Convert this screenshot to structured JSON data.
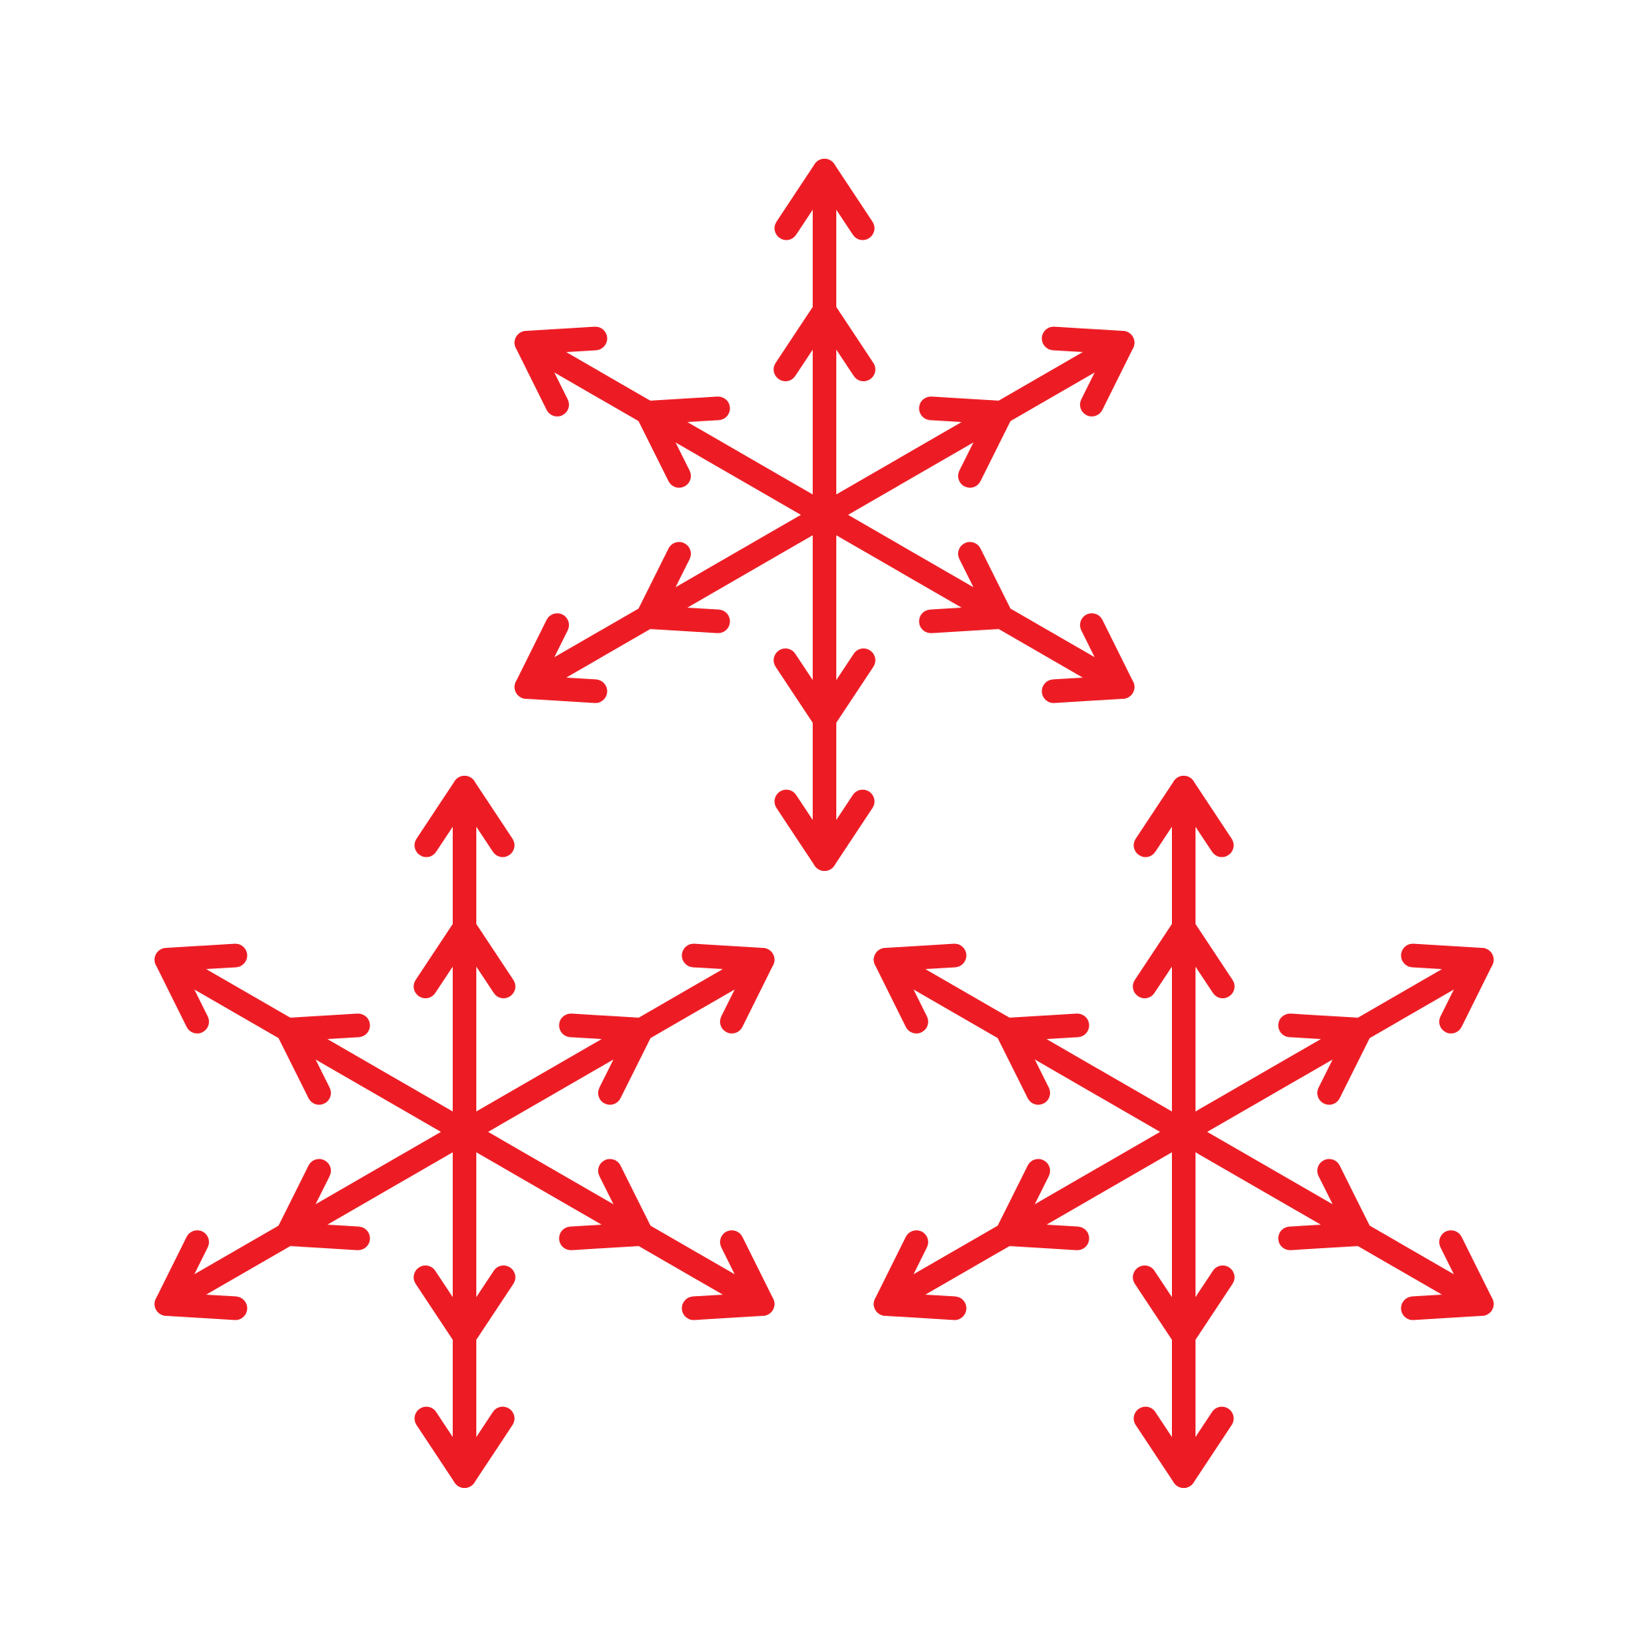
{
  "image": {
    "background": "#ffffff",
    "icon_color": "#ed1c24",
    "icon_name": "snowflakes-icon"
  },
  "snowflakes": [
    {
      "name": "snowflake-top"
    },
    {
      "name": "snowflake-bottom-left"
    },
    {
      "name": "snowflake-bottom-right"
    }
  ]
}
